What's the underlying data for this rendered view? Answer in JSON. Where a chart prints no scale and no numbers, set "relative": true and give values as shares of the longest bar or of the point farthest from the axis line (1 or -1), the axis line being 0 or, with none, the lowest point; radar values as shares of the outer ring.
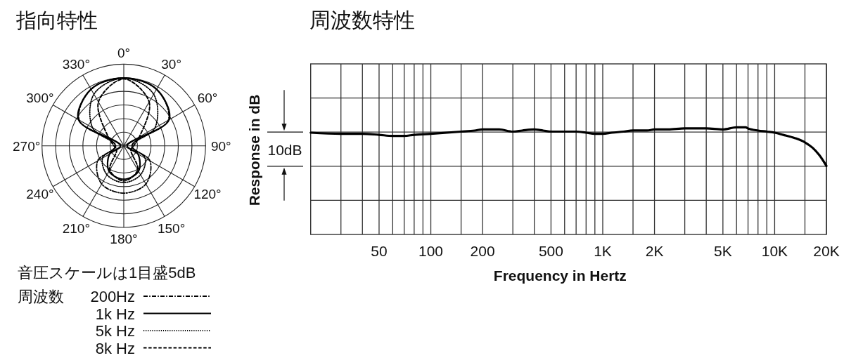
{
  "chart_data": [
    {
      "type": "radar",
      "title": "指向特性",
      "relative": true,
      "grid": true,
      "legend": "bottom",
      "legend_title": "周波数",
      "annotations": [
        "音圧スケールは1目盛5dB"
      ],
      "categories": [
        "0°",
        "30°",
        "60°",
        "90°",
        "120°",
        "150°",
        "180°",
        "210°",
        "240°",
        "270°",
        "300°",
        "330°"
      ],
      "series": [
        {
          "name": "200Hz",
          "color": "#000000",
          "line_style": "dashdot",
          "values": [
            0.83,
            0.8,
            0.63,
            0.1,
            0.37,
            0.54,
            0.58,
            0.54,
            0.37,
            0.1,
            0.63,
            0.8
          ]
        },
        {
          "name": "1k Hz",
          "color": "#000000",
          "line_style": "solid",
          "values": [
            0.83,
            0.8,
            0.64,
            0.04,
            0.2,
            0.36,
            0.41,
            0.36,
            0.2,
            0.04,
            0.64,
            0.8
          ]
        },
        {
          "name": "5k Hz",
          "color": "#000000",
          "line_style": "dotted",
          "values": [
            0.83,
            0.73,
            0.44,
            0.1,
            0.3,
            0.41,
            0.45,
            0.41,
            0.3,
            0.1,
            0.44,
            0.73
          ]
        },
        {
          "name": "8k Hz",
          "color": "#000000",
          "line_style": "dashed",
          "values": [
            0.82,
            0.62,
            0.22,
            0.12,
            0.1,
            0.34,
            0.43,
            0.34,
            0.1,
            0.12,
            0.22,
            0.62
          ]
        }
      ]
    },
    {
      "type": "line",
      "title": "周波数特性",
      "xlabel": "Frequency in Hertz",
      "ylabel": "Response in dB",
      "annotations": [
        "10dB"
      ],
      "relative": true,
      "log": "x",
      "grid": true,
      "xlim": [
        20,
        20000
      ],
      "xticks": [
        {
          "value": 30,
          "label": null
        },
        {
          "value": 40,
          "label": null
        },
        50,
        {
          "value": 60,
          "label": null
        },
        {
          "value": 70,
          "label": null
        },
        {
          "value": 80,
          "label": null
        },
        {
          "value": 90,
          "label": null
        },
        100,
        {
          "value": 150,
          "label": null
        },
        200,
        {
          "value": 300,
          "label": null
        },
        {
          "value": 400,
          "label": null
        },
        500,
        {
          "value": 600,
          "label": null
        },
        {
          "value": 700,
          "label": null
        },
        {
          "value": 800,
          "label": null
        },
        {
          "value": 900,
          "label": null
        },
        {
          "value": 1000,
          "label": "1K"
        },
        {
          "value": 1500,
          "label": null
        },
        {
          "value": 2000,
          "label": "2K"
        },
        {
          "value": 3000,
          "label": null
        },
        {
          "value": 4000,
          "label": null
        },
        {
          "value": 5000,
          "label": "5K"
        },
        {
          "value": 6000,
          "label": null
        },
        {
          "value": 7000,
          "label": null
        },
        {
          "value": 8000,
          "label": null
        },
        {
          "value": 9000,
          "label": null
        },
        {
          "value": 10000,
          "label": "10K"
        },
        {
          "value": 15000,
          "label": null
        },
        {
          "value": 20000,
          "label": "20K"
        }
      ],
      "x": [
        20,
        30,
        40,
        50,
        60,
        67,
        70,
        80,
        100,
        150,
        180,
        200,
        220,
        250,
        300,
        340,
        400,
        450,
        500,
        600,
        700,
        800,
        900,
        1000,
        1130,
        1320,
        1500,
        1810,
        2000,
        2400,
        3000,
        4000,
        5000,
        6000,
        6780,
        7000,
        8000,
        9000,
        10000,
        11200,
        13100,
        15000,
        16600,
        18200,
        20000
      ],
      "series": [
        {
          "color": "#000000",
          "values": [
            0.95,
            0.94,
            0.94,
            0.93,
            0.92,
            0.92,
            0.92,
            0.93,
            0.94,
            0.96,
            0.97,
            0.98,
            0.98,
            0.98,
            0.96,
            0.97,
            0.98,
            0.97,
            0.96,
            0.96,
            0.96,
            0.95,
            0.94,
            0.94,
            0.95,
            0.96,
            0.97,
            0.97,
            0.98,
            0.98,
            0.99,
            0.99,
            0.98,
            1.0,
            1.0,
            0.99,
            0.97,
            0.96,
            0.95,
            0.93,
            0.9,
            0.86,
            0.81,
            0.74,
            0.64
          ]
        }
      ]
    }
  ]
}
